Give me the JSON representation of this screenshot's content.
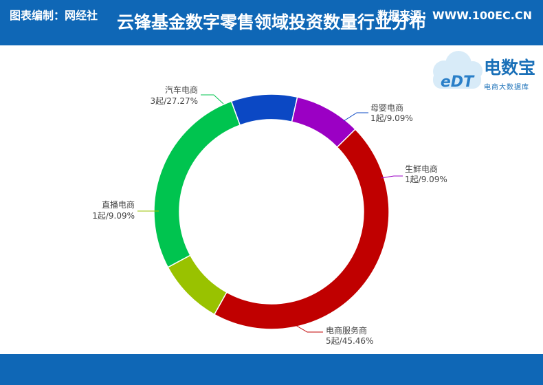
{
  "header": {
    "title": "云锋基金数字零售领域投资数量行业分布"
  },
  "footer": {
    "left": "图表编制：网经社",
    "right": "数据来源：WWW.100EC.CN"
  },
  "logo": {
    "badge": "eDT",
    "name": "电数宝",
    "subtitle": "电商大数据库"
  },
  "colors": {
    "header": "#0f67b6",
    "brand": "#1a70b8"
  },
  "chart_data": {
    "type": "pie",
    "donut": true,
    "series": [
      {
        "name": "母婴电商",
        "count": "1起",
        "percent": "9.09%",
        "value": 9.09,
        "color": "#0b48c4"
      },
      {
        "name": "生鲜电商",
        "count": "1起",
        "percent": "9.09%",
        "value": 9.09,
        "color": "#9b00c4"
      },
      {
        "name": "电商服务商",
        "count": "5起",
        "percent": "45.46%",
        "value": 45.46,
        "color": "#c00000"
      },
      {
        "name": "直播电商",
        "count": "1起",
        "percent": "9.09%",
        "value": 9.09,
        "color": "#99c200"
      },
      {
        "name": "汽车电商",
        "count": "3起",
        "percent": "27.27%",
        "value": 27.27,
        "color": "#00c44f"
      }
    ]
  }
}
